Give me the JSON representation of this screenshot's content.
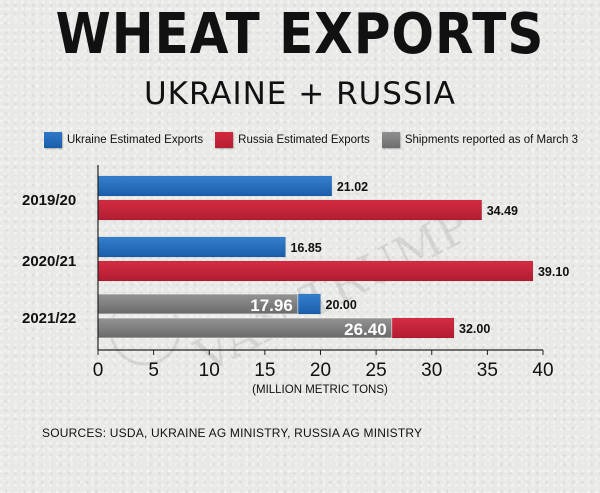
{
  "title": "WHEAT EXPORTS",
  "subtitle": "UKRAINE + RUSSIA",
  "legend": [
    {
      "label": "Ukraine Estimated Exports",
      "color": "#1f67b8"
    },
    {
      "label": "Russia Estimated Exports",
      "color": "#c4213a"
    },
    {
      "label": "Shipments reported as of  March 3",
      "color": "#7d7d7d"
    }
  ],
  "watermark": "The VAN TRUMP Report",
  "sources": "SOURCES: USDA, UKRAINE AG MINISTRY, RUSSIA AG MINISTRY",
  "chart_data": {
    "type": "bar",
    "orientation": "horizontal",
    "categories": [
      "2019/20",
      "2020/21",
      "2021/22"
    ],
    "series": [
      {
        "name": "Ukraine Estimated Exports",
        "color": "#1f67b8",
        "values": [
          21.02,
          16.85,
          20.0
        ],
        "labels": [
          "21.02",
          "16.85",
          "20.00"
        ]
      },
      {
        "name": "Russia Estimated Exports",
        "color": "#c4213a",
        "values": [
          34.49,
          39.1,
          32.0
        ],
        "labels": [
          "34.49",
          "39.10",
          "32.00"
        ]
      }
    ],
    "shipments": [
      {
        "category": "2021/22",
        "series": "Ukraine Estimated Exports",
        "value": 17.96,
        "label": "17.96",
        "color": "#7d7d7d"
      },
      {
        "category": "2021/22",
        "series": "Russia Estimated Exports",
        "value": 26.4,
        "label": "26.40",
        "color": "#7d7d7d"
      }
    ],
    "xlabel": "(MILLION METRIC TONS)",
    "xlim": [
      0,
      40
    ],
    "xticks": [
      0,
      5,
      10,
      15,
      20,
      25,
      30,
      35,
      40
    ],
    "grid": false,
    "legend_position": "top"
  }
}
